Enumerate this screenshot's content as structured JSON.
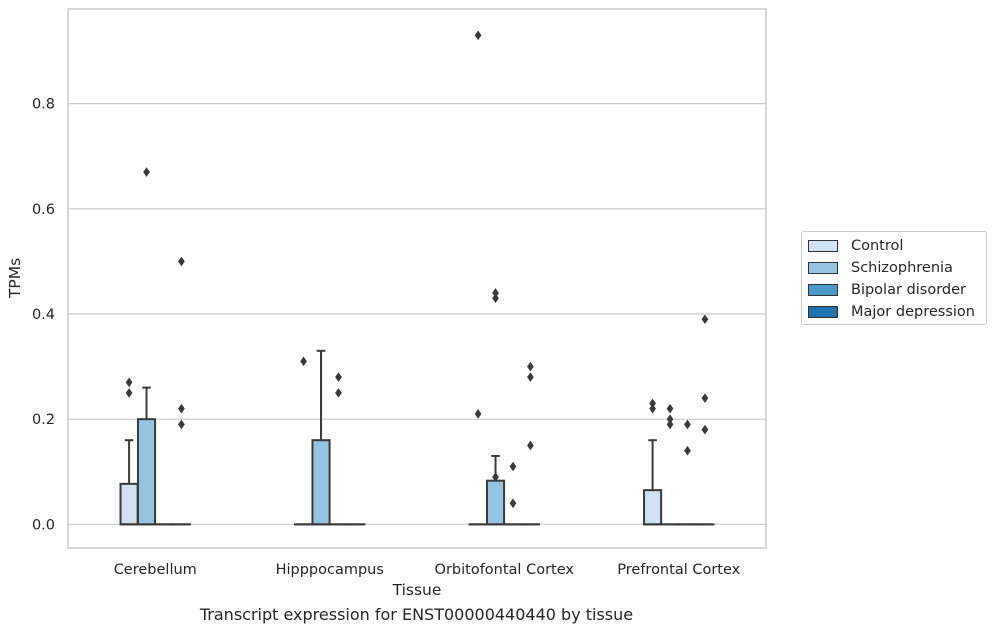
{
  "chart_data": {
    "type": "box",
    "title": "",
    "xlabel": "Tissue",
    "ylabel": "TPMs",
    "caption": "Transcript expression for ENST00000440440 by tissue",
    "ylim": [
      -0.045,
      0.98
    ],
    "yticks": [
      "0.0",
      "0.2",
      "0.4",
      "0.6",
      "0.8"
    ],
    "ytick_values": [
      0.0,
      0.2,
      0.4,
      0.6,
      0.8
    ],
    "grid": "horizontal",
    "legend_position": "right",
    "categories": [
      "Cerebellum",
      "Hipppocampus",
      "Orbitofontal Cortex",
      "Prefrontal Cortex"
    ],
    "series": [
      {
        "name": "Control",
        "color": "#d0e1f2",
        "boxes": [
          {
            "q1": 0.0,
            "median": 0.0,
            "q3": 0.077,
            "whislo": 0.0,
            "whishi": 0.16,
            "fliers": [
              0.25,
              0.27
            ]
          },
          {
            "q1": 0.0,
            "median": 0.0,
            "q3": 0.0,
            "whislo": 0.0,
            "whishi": 0.0,
            "fliers": [
              0.31
            ]
          },
          {
            "q1": 0.0,
            "median": 0.0,
            "q3": 0.0,
            "whislo": 0.0,
            "whishi": 0.0,
            "fliers": [
              0.21,
              0.93
            ]
          },
          {
            "q1": 0.0,
            "median": 0.0,
            "q3": 0.065,
            "whislo": 0.0,
            "whishi": 0.16,
            "fliers": [
              0.22,
              0.23
            ]
          }
        ]
      },
      {
        "name": "Schizophrenia",
        "color": "#94c4df",
        "boxes": [
          {
            "q1": 0.0,
            "median": 0.0,
            "q3": 0.2,
            "whislo": 0.0,
            "whishi": 0.26,
            "fliers": [
              0.67
            ]
          },
          {
            "q1": 0.0,
            "median": 0.0,
            "q3": 0.16,
            "whislo": 0.0,
            "whishi": 0.33,
            "fliers": []
          },
          {
            "q1": 0.0,
            "median": 0.0,
            "q3": 0.083,
            "whislo": 0.0,
            "whishi": 0.13,
            "fliers": [
              0.09,
              0.43,
              0.44
            ]
          },
          {
            "q1": 0.0,
            "median": 0.0,
            "q3": 0.0,
            "whislo": 0.0,
            "whishi": 0.0,
            "fliers": [
              0.19,
              0.2,
              0.22
            ]
          }
        ]
      },
      {
        "name": "Bipolar disorder",
        "color": "#4a98c9",
        "boxes": [
          {
            "q1": 0.0,
            "median": 0.0,
            "q3": 0.0,
            "whislo": 0.0,
            "whishi": 0.0,
            "fliers": []
          },
          {
            "q1": 0.0,
            "median": 0.0,
            "q3": 0.0,
            "whislo": 0.0,
            "whishi": 0.0,
            "fliers": [
              0.25,
              0.28
            ]
          },
          {
            "q1": 0.0,
            "median": 0.0,
            "q3": 0.0,
            "whislo": 0.0,
            "whishi": 0.0,
            "fliers": [
              0.04,
              0.11
            ]
          },
          {
            "q1": 0.0,
            "median": 0.0,
            "q3": 0.0,
            "whislo": 0.0,
            "whishi": 0.0,
            "fliers": [
              0.14,
              0.19
            ]
          }
        ]
      },
      {
        "name": "Major depression",
        "color": "#2171b5",
        "boxes": [
          {
            "q1": 0.0,
            "median": 0.0,
            "q3": 0.0,
            "whislo": 0.0,
            "whishi": 0.0,
            "fliers": [
              0.19,
              0.22,
              0.5
            ]
          },
          {
            "q1": 0.0,
            "median": 0.0,
            "q3": 0.0,
            "whislo": 0.0,
            "whishi": 0.0,
            "fliers": []
          },
          {
            "q1": 0.0,
            "median": 0.0,
            "q3": 0.0,
            "whislo": 0.0,
            "whishi": 0.0,
            "fliers": [
              0.15,
              0.28,
              0.3
            ]
          },
          {
            "q1": 0.0,
            "median": 0.0,
            "q3": 0.0,
            "whislo": 0.0,
            "whishi": 0.0,
            "fliers": [
              0.18,
              0.24,
              0.39
            ]
          }
        ]
      }
    ]
  },
  "legend": {
    "items": [
      "Control",
      "Schizophrenia",
      "Bipolar disorder",
      "Major depression"
    ]
  }
}
